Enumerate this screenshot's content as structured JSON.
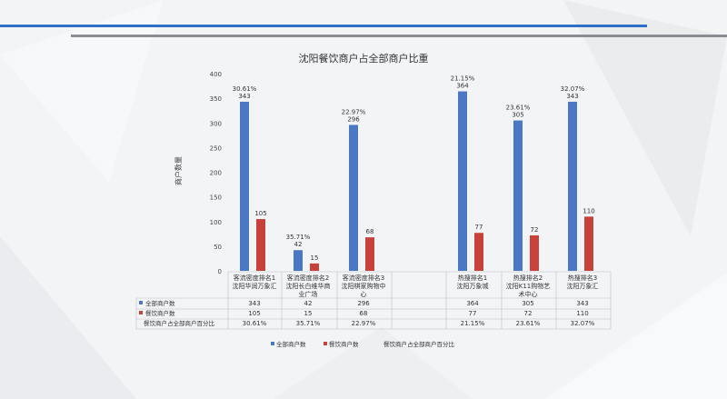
{
  "chart_data": {
    "type": "bar",
    "title": "沈阳餐饮商户占全部商户比重",
    "ylabel": "商户数量",
    "ylim": [
      0,
      400
    ],
    "yticks": [
      0,
      50,
      100,
      150,
      200,
      250,
      300,
      350,
      400
    ],
    "grid": false,
    "legend_position": "bottom",
    "categories": [
      {
        "lines": [
          "客流密度排名1",
          "沈阳华润万象汇"
        ]
      },
      {
        "lines": [
          "客流密度排名2",
          "沈阳长白维华商",
          "业广场"
        ]
      },
      {
        "lines": [
          "客流密度排名3",
          "沈阳棋家购物中",
          "心"
        ]
      },
      {
        "lines": [
          "热搜排名1",
          "沈阳万象城"
        ]
      },
      {
        "lines": [
          "热搜排名2",
          "沈阳K11购物艺",
          "术中心"
        ]
      },
      {
        "lines": [
          "热搜排名3",
          "沈阳万象汇"
        ]
      }
    ],
    "series": [
      {
        "name": "全部商户数",
        "color": "#4a78c4",
        "values": [
          343,
          42,
          296,
          364,
          305,
          343
        ]
      },
      {
        "name": "餐饮商户数",
        "color": "#c8413b",
        "values": [
          105,
          15,
          68,
          77,
          72,
          110
        ]
      },
      {
        "name": "餐饮商户占全部商户百分比",
        "color": "#e6c84a",
        "values": [
          "30.61%",
          "35.71%",
          "22.97%",
          "21.15%",
          "23.61%",
          "32.07%"
        ]
      }
    ]
  }
}
